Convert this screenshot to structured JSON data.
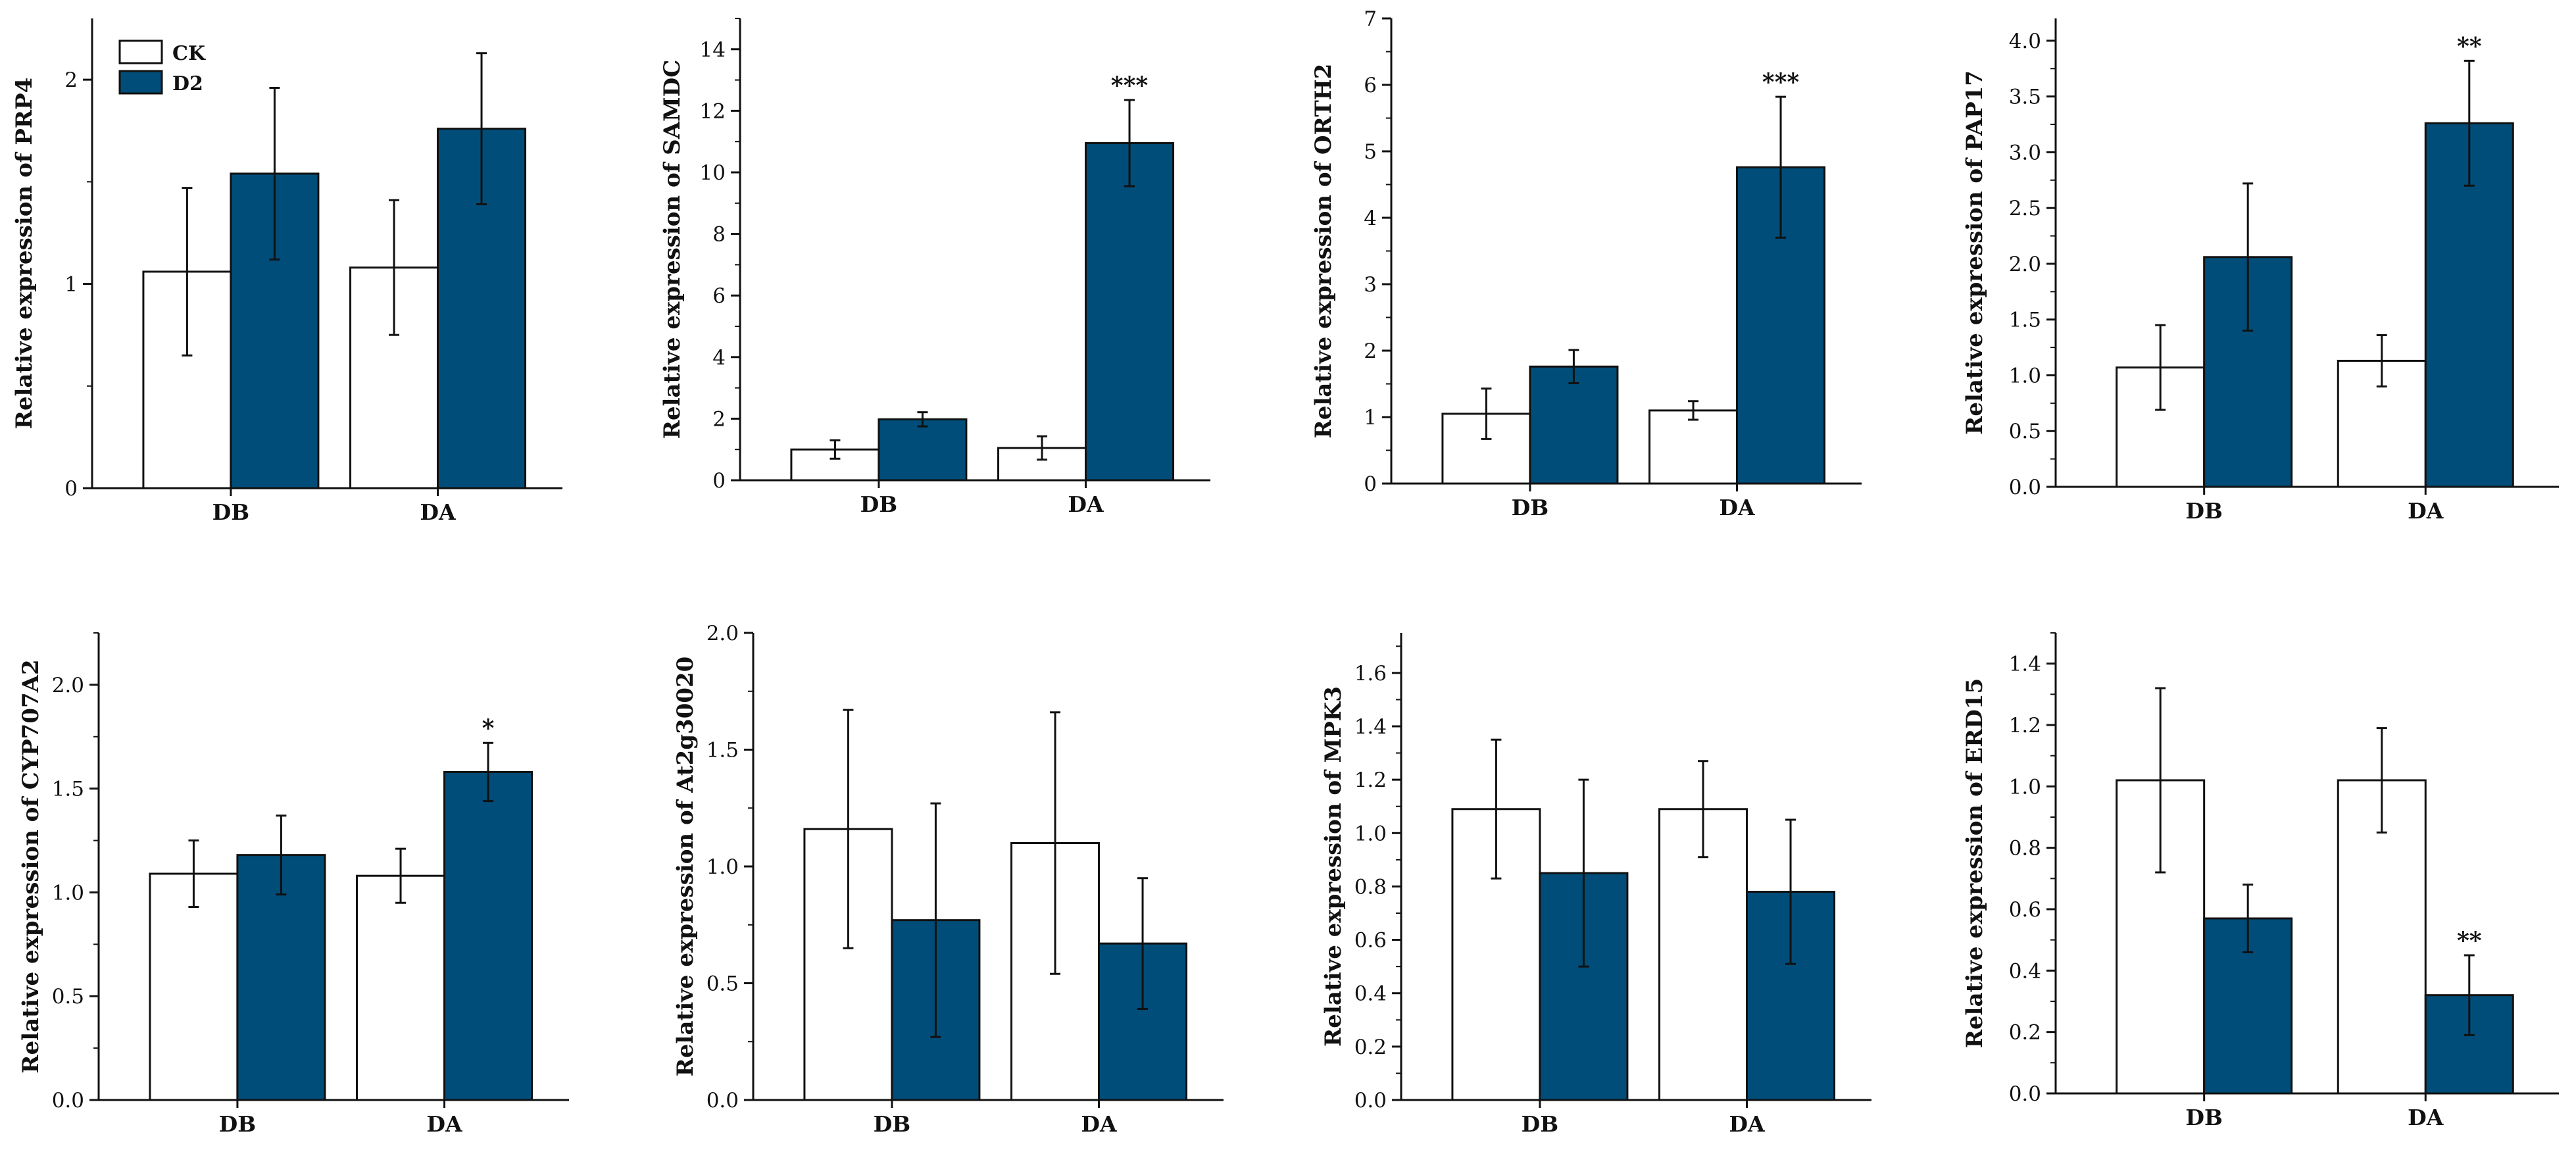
{
  "legend": {
    "ck_label": "CK",
    "d2_label": "D2",
    "ck_color": "#ffffff",
    "d2_color": "#004d79"
  },
  "chart_data": [
    {
      "type": "bar",
      "ylabel": "Relative expression of PRP4",
      "categories": [
        "DB",
        "DA"
      ],
      "ylim": [
        0,
        2.3
      ],
      "yticks": [
        "0",
        "1",
        "2"
      ],
      "ytick_values": [
        0,
        1,
        2
      ],
      "series": [
        {
          "name": "CK",
          "values": [
            1.06,
            1.08
          ],
          "errors": [
            0.41,
            0.33
          ]
        },
        {
          "name": "D2",
          "values": [
            1.54,
            1.76
          ],
          "errors": [
            0.42,
            0.37
          ]
        }
      ],
      "significance": [
        "",
        ""
      ]
    },
    {
      "type": "bar",
      "ylabel": "Relative expression of SAMDC",
      "categories": [
        "DB",
        "DA"
      ],
      "ylim": [
        0,
        15
      ],
      "yticks": [
        "0",
        "2",
        "4",
        "6",
        "8",
        "10",
        "12",
        "14"
      ],
      "ytick_values": [
        0,
        2,
        4,
        6,
        8,
        10,
        12,
        14
      ],
      "series": [
        {
          "name": "CK",
          "values": [
            1.0,
            1.05
          ],
          "errors": [
            0.3,
            0.38
          ]
        },
        {
          "name": "D2",
          "values": [
            1.98,
            10.95
          ],
          "errors": [
            0.23,
            1.4
          ]
        }
      ],
      "significance": [
        "",
        "***"
      ]
    },
    {
      "type": "bar",
      "ylabel": "Relative expression of ORTH2",
      "categories": [
        "DB",
        "DA"
      ],
      "ylim": [
        0,
        7
      ],
      "yticks": [
        "0",
        "1",
        "2",
        "3",
        "4",
        "5",
        "6",
        "7"
      ],
      "ytick_values": [
        0,
        1,
        2,
        3,
        4,
        5,
        6,
        7
      ],
      "series": [
        {
          "name": "CK",
          "values": [
            1.05,
            1.1
          ],
          "errors": [
            0.38,
            0.14
          ]
        },
        {
          "name": "D2",
          "values": [
            1.76,
            4.76
          ],
          "errors": [
            0.25,
            1.06
          ]
        }
      ],
      "significance": [
        "",
        "***"
      ]
    },
    {
      "type": "bar",
      "ylabel": "Relative expression of PAP17",
      "categories": [
        "DB",
        "DA"
      ],
      "ylim": [
        0,
        4.2
      ],
      "yticks": [
        "0.0",
        "0.5",
        "1.0",
        "1.5",
        "2.0",
        "2.5",
        "3.0",
        "3.5",
        "4.0"
      ],
      "ytick_values": [
        0,
        0.5,
        1,
        1.5,
        2,
        2.5,
        3,
        3.5,
        4
      ],
      "series": [
        {
          "name": "CK",
          "values": [
            1.07,
            1.13
          ],
          "errors": [
            0.38,
            0.23
          ]
        },
        {
          "name": "D2",
          "values": [
            2.06,
            3.26
          ],
          "errors": [
            0.66,
            0.56
          ]
        }
      ],
      "significance": [
        "",
        "**"
      ]
    },
    {
      "type": "bar",
      "ylabel": "Relative expression of CYP707A2",
      "categories": [
        "DB",
        "DA"
      ],
      "ylim": [
        0,
        2.25
      ],
      "yticks": [
        "0.0",
        "0.5",
        "1.0",
        "1.5",
        "2.0"
      ],
      "ytick_values": [
        0,
        0.5,
        1,
        1.5,
        2
      ],
      "series": [
        {
          "name": "CK",
          "values": [
            1.09,
            1.08
          ],
          "errors": [
            0.16,
            0.13
          ]
        },
        {
          "name": "D2",
          "values": [
            1.18,
            1.58
          ],
          "errors": [
            0.19,
            0.14
          ]
        }
      ],
      "significance": [
        "",
        "*"
      ]
    },
    {
      "type": "bar",
      "ylabel": "Relative expression of At2g30020",
      "categories": [
        "DB",
        "DA"
      ],
      "ylim": [
        0,
        2.0
      ],
      "yticks": [
        "0.0",
        "0.5",
        "1.0",
        "1.5",
        "2.0"
      ],
      "ytick_values": [
        0,
        0.5,
        1,
        1.5,
        2
      ],
      "series": [
        {
          "name": "CK",
          "values": [
            1.16,
            1.1
          ],
          "errors": [
            0.51,
            0.56
          ]
        },
        {
          "name": "D2",
          "values": [
            0.77,
            0.67
          ],
          "errors": [
            0.5,
            0.28
          ]
        }
      ],
      "significance": [
        "",
        ""
      ]
    },
    {
      "type": "bar",
      "ylabel": "Relative expression of MPK3",
      "categories": [
        "DB",
        "DA"
      ],
      "ylim": [
        0,
        1.75
      ],
      "yticks": [
        "0.0",
        "0.2",
        "0.4",
        "0.6",
        "0.8",
        "1.0",
        "1.2",
        "1.4",
        "1.6"
      ],
      "ytick_values": [
        0,
        0.2,
        0.4,
        0.6,
        0.8,
        1.0,
        1.2,
        1.4,
        1.6
      ],
      "series": [
        {
          "name": "CK",
          "values": [
            1.09,
            1.09
          ],
          "errors": [
            0.26,
            0.18
          ]
        },
        {
          "name": "D2",
          "values": [
            0.85,
            0.78
          ],
          "errors": [
            0.35,
            0.27
          ]
        }
      ],
      "significance": [
        "",
        ""
      ]
    },
    {
      "type": "bar",
      "ylabel": "Relative expression of ERD15",
      "categories": [
        "DB",
        "DA"
      ],
      "ylim": [
        0,
        1.5
      ],
      "yticks": [
        "0.0",
        "0.2",
        "0.4",
        "0.6",
        "0.8",
        "1.0",
        "1.2",
        "1.4"
      ],
      "ytick_values": [
        0,
        0.2,
        0.4,
        0.6,
        0.8,
        1.0,
        1.2,
        1.4
      ],
      "series": [
        {
          "name": "CK",
          "values": [
            1.02,
            1.02
          ],
          "errors": [
            0.3,
            0.17
          ]
        },
        {
          "name": "D2",
          "values": [
            0.57,
            0.32
          ],
          "errors": [
            0.11,
            0.13
          ]
        }
      ],
      "significance": [
        "",
        "**"
      ]
    }
  ]
}
